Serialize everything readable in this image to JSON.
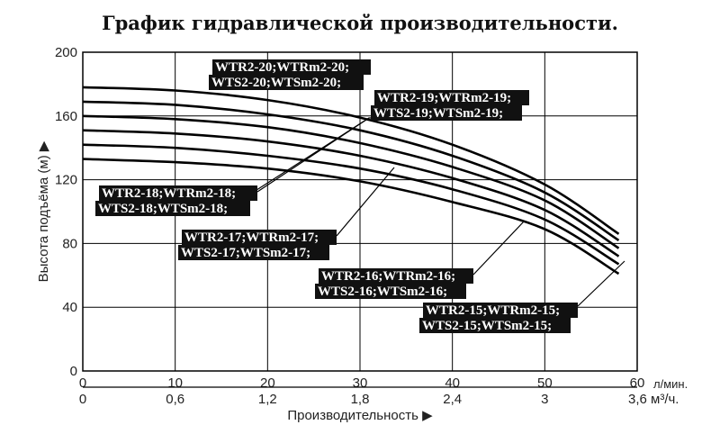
{
  "chart_data": {
    "type": "line",
    "title": "График гидравлической производительности.",
    "ylabel": "Высота подъёма (м) ▶",
    "xlabel": "Производительность ▶",
    "x_unit_top": "л/мин.",
    "x_unit_bottom": "3,6 м³/ч.",
    "ylim": [
      0,
      200
    ],
    "xlim": [
      0,
      60
    ],
    "grid": true,
    "y_ticks": [
      "0",
      "40",
      "80",
      "120",
      "160",
      "200"
    ],
    "x_ticks_top": [
      "0",
      "10",
      "20",
      "30",
      "40",
      "50",
      "60"
    ],
    "x_ticks_bottom": [
      "0",
      "0,6",
      "1,2",
      "1,8",
      "2,4",
      "3"
    ],
    "series": [
      {
        "x": [
          0,
          10,
          20,
          30,
          40,
          50,
          58
        ],
        "values": [
          178,
          176,
          170,
          159,
          142,
          117,
          86
        ]
      },
      {
        "x": [
          0,
          10,
          20,
          30,
          40,
          50,
          58
        ],
        "values": [
          169,
          167,
          161,
          151,
          135,
          112,
          82
        ]
      },
      {
        "x": [
          0,
          10,
          20,
          30,
          40,
          50,
          58
        ],
        "values": [
          160,
          158,
          153,
          143,
          128,
          107,
          77
        ]
      },
      {
        "x": [
          0,
          10,
          20,
          30,
          40,
          50,
          58
        ],
        "values": [
          151,
          149,
          144,
          135,
          121,
          101,
          72
        ]
      },
      {
        "x": [
          0,
          10,
          20,
          30,
          40,
          50,
          58
        ],
        "values": [
          142,
          140,
          135,
          127,
          114,
          95,
          67
        ]
      },
      {
        "x": [
          0,
          10,
          20,
          30,
          40,
          50,
          58
        ],
        "values": [
          133,
          131,
          127,
          119,
          106,
          89,
          61
        ]
      }
    ],
    "annotations": [
      {
        "id": "s20",
        "lines": [
          "WTR2-20;WTRm2-20;",
          "WTS2-20;WTSm2-20;"
        ]
      },
      {
        "id": "s19",
        "lines": [
          "WTR2-19;WTRm2-19;",
          "WTS2-19;WTSm2-19;"
        ]
      },
      {
        "id": "s18",
        "lines": [
          "WTR2-18;WTRm2-18;",
          "WTS2-18;WTSm2-18;"
        ]
      },
      {
        "id": "s17",
        "lines": [
          "WTR2-17;WTRm2-17;",
          "WTS2-17;WTSm2-17;"
        ]
      },
      {
        "id": "s16",
        "lines": [
          "WTR2-16;WTRm2-16;",
          "WTS2-16;WTSm2-16;"
        ]
      },
      {
        "id": "s15",
        "lines": [
          "WTR2-15;WTRm2-15;",
          "WTS2-15;WTSm2-15;"
        ]
      }
    ]
  }
}
